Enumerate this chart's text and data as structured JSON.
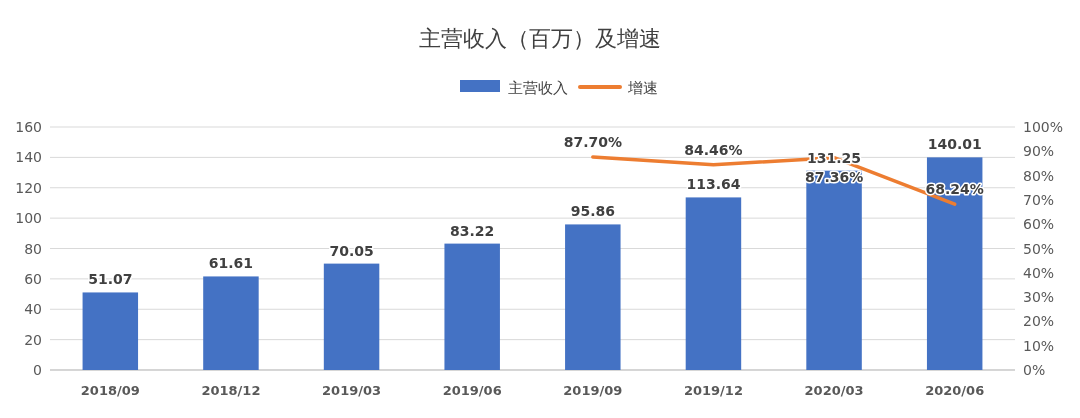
{
  "chart_data": {
    "type": "bar",
    "title": "主营收入（百万）及增速",
    "categories": [
      "2018/09",
      "2018/12",
      "2019/03",
      "2019/06",
      "2019/09",
      "2019/12",
      "2020/03",
      "2020/06"
    ],
    "series": [
      {
        "name": "主营收入",
        "color": "#4472c4",
        "values": [
          51.07,
          61.61,
          70.05,
          83.22,
          95.86,
          113.64,
          131.25,
          140.01
        ],
        "value_labels": [
          "51.07",
          "61.61",
          "70.05",
          "83.22",
          "95.86",
          "113.64",
          "131.25",
          "140.01"
        ]
      },
      {
        "name": "增速",
        "type": "line",
        "axis": "y2",
        "color": "#ed7d31",
        "values": [
          null,
          null,
          null,
          null,
          87.7,
          84.46,
          87.36,
          68.24
        ],
        "value_labels": [
          null,
          null,
          null,
          null,
          "87.70%",
          "84.46%",
          "87.36%",
          "68.24%"
        ]
      }
    ],
    "ylim": [
      0,
      160
    ],
    "yticks": [
      0,
      20,
      40,
      60,
      80,
      100,
      120,
      140,
      160
    ],
    "y2lim": [
      0,
      100
    ],
    "y2ticks": [
      {
        "value": 0,
        "label": "0%"
      },
      {
        "value": 10,
        "label": "10%"
      },
      {
        "value": 20,
        "label": "20%"
      },
      {
        "value": 30,
        "label": "30%"
      },
      {
        "value": 40,
        "label": "40%"
      },
      {
        "value": 50,
        "label": "50%"
      },
      {
        "value": 60,
        "label": "60%"
      },
      {
        "value": 70,
        "label": "70%"
      },
      {
        "value": 80,
        "label": "80%"
      },
      {
        "value": 90,
        "label": "90%"
      },
      {
        "value": 100,
        "label": "100%"
      }
    ],
    "grid": "y",
    "legend": "top",
    "marker": "none"
  }
}
